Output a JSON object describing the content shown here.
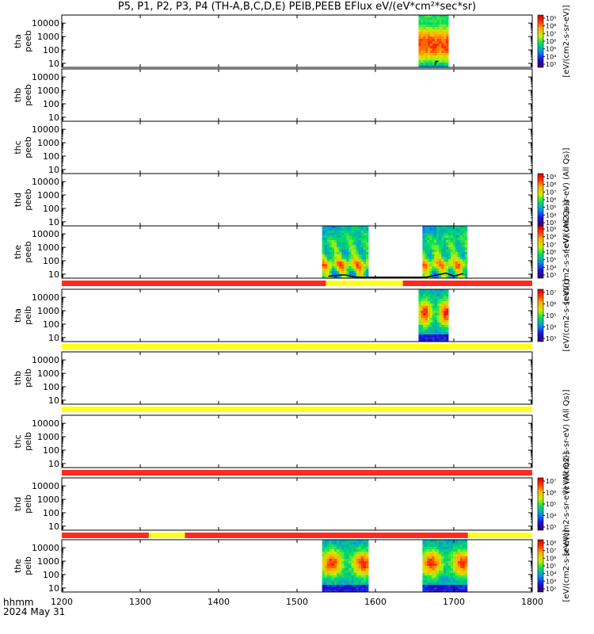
{
  "figure": {
    "title": "P5, P1, P2, P3, P4 (TH-A,B,C,D,E) PEIB,PEEB EFlux eV/(eV*cm²*sec*sr)",
    "footer_label": "hhmm",
    "footer_date": "2024 May 31"
  },
  "colors": {
    "ok": "#ff2a1f",
    "caution": "#ffff1c",
    "trace": "#000000"
  },
  "chart_data": {
    "type": "heatmap",
    "x_axis": {
      "ticks": [
        "1200",
        "1300",
        "1400",
        "1500",
        "1600",
        "1700",
        "1800"
      ],
      "range": [
        1200,
        1800
      ],
      "units": "hhmm"
    },
    "y_axis": {
      "scale": "log",
      "ticks": [
        "10",
        "100",
        "1000",
        "10000"
      ]
    },
    "panels": [
      {
        "id": "tha-peeb",
        "ylabel": [
          "tha",
          "peeb"
        ],
        "colorbar": {
          "labels": [
            "10⁹",
            "10⁸",
            "10⁷",
            "10⁶",
            "10⁵",
            "10⁴",
            "10³"
          ],
          "title": "[eV/(cm2-s-sr-eV)]"
        },
        "segments": [
          {
            "x": [
              1655,
              1693
            ],
            "profile": "upper"
          }
        ],
        "trace": [
          [
            1676,
            7
          ],
          [
            1677,
            14
          ],
          [
            1680,
            14
          ]
        ]
      },
      {
        "id": "thb-peeb",
        "ylabel": [
          "thb",
          "peeb"
        ],
        "segments": []
      },
      {
        "id": "thc-peeb",
        "ylabel": [
          "thc",
          "peeb"
        ],
        "segments": []
      },
      {
        "id": "thd-peeb",
        "ylabel": [
          "thd",
          "peeb"
        ],
        "colorbar": {
          "labels": [
            "10⁹",
            "10⁸",
            "10⁷",
            "10⁶",
            "10⁵",
            "10⁴",
            "10³"
          ],
          "title": "[eV/(cm2-s-sr-eV) (All Qs)]"
        },
        "segments": []
      },
      {
        "id": "the-peeb",
        "ylabel": [
          "the",
          "peeb"
        ],
        "colorbar": {
          "labels": [
            "10⁹",
            "10⁸",
            "10⁷",
            "10⁶",
            "10⁵",
            "10⁴",
            "10³"
          ],
          "title": "[eV/(cm2-s-sr-eV) (All Qs)]"
        },
        "segments": [
          {
            "x": [
              1532,
              1591
            ],
            "profile": "mixed"
          },
          {
            "x": [
              1660,
              1717
            ],
            "profile": "mixed"
          }
        ],
        "trace": [
          [
            1540,
            7
          ],
          [
            1560,
            9
          ],
          [
            1575,
            6
          ],
          [
            1584,
            6
          ],
          [
            1665,
            6
          ],
          [
            1680,
            9
          ],
          [
            1690,
            12
          ],
          [
            1700,
            7
          ],
          [
            1712,
            11
          ]
        ],
        "status_below": [
          {
            "x": [
              1200,
              1537
            ],
            "state": "ok"
          },
          {
            "x": [
              1537,
              1635
            ],
            "state": "caution"
          },
          {
            "x": [
              1635,
              1800
            ],
            "state": "ok"
          }
        ]
      },
      {
        "id": "tha-peib",
        "ylabel": [
          "tha",
          "peib"
        ],
        "colorbar": {
          "labels": [
            "10⁷",
            "10⁶",
            "10⁵",
            "10⁴",
            "10³"
          ],
          "title": "[eV/(cm2-s-sr-eV)]"
        },
        "segments": [
          {
            "x": [
              1655,
              1693
            ],
            "profile": "ion"
          }
        ],
        "status_below": [
          {
            "x": [
              1200,
              1800
            ],
            "state": "caution"
          }
        ]
      },
      {
        "id": "thb-peib",
        "ylabel": [
          "thb",
          "peib"
        ],
        "segments": [],
        "status_below": [
          {
            "x": [
              1200,
              1800
            ],
            "state": "caution"
          }
        ]
      },
      {
        "id": "thc-peib",
        "ylabel": [
          "thc",
          "peib"
        ],
        "colorbar": {
          "labels": [],
          "title": "[eV/(cm2-s-sr-eV) (All Qs)]"
        },
        "segments": [],
        "status_below": [
          {
            "x": [
              1200,
              1800
            ],
            "state": "ok"
          }
        ]
      },
      {
        "id": "thd-peib",
        "ylabel": [
          "thd",
          "peib"
        ],
        "colorbar": {
          "labels": [
            "10⁷",
            "10⁶",
            "10⁵",
            "10⁴",
            "10³"
          ],
          "title": "[eV/(cm2-s-sr-eV) (All Qs)]"
        },
        "segments": [],
        "status_below": [
          {
            "x": [
              1200,
              1311
            ],
            "state": "ok"
          },
          {
            "x": [
              1311,
              1357
            ],
            "state": "caution"
          },
          {
            "x": [
              1357,
              1718
            ],
            "state": "ok"
          },
          {
            "x": [
              1718,
              1800
            ],
            "state": "caution"
          }
        ]
      },
      {
        "id": "the-peib",
        "ylabel": [
          "the",
          "peib"
        ],
        "colorbar": {
          "labels": [
            "10⁸",
            "10⁷",
            "10⁶",
            "10⁵",
            "10⁴",
            "10³",
            "10²"
          ],
          "title": "[eV/(cm2-s-sr-eV)]"
        },
        "segments": [
          {
            "x": [
              1532,
              1591
            ],
            "profile": "ion"
          },
          {
            "x": [
              1660,
              1717
            ],
            "profile": "ion"
          }
        ]
      }
    ]
  }
}
